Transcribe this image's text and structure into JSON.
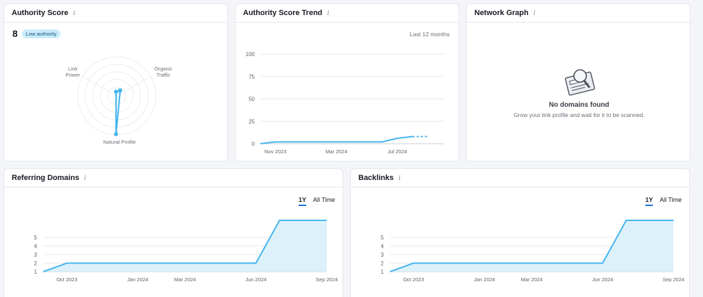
{
  "authority": {
    "title": "Authority Score",
    "score": "8",
    "badge": "Low authority",
    "labels": {
      "link_power": [
        "Link",
        "Power"
      ],
      "organic_traffic": [
        "Organic",
        "Traffic"
      ],
      "natural_profile": "Natural Profile"
    }
  },
  "trend": {
    "title": "Authority Score Trend",
    "period": "Last 12 months"
  },
  "network": {
    "title": "Network Graph",
    "empty_title": "No domains found",
    "empty_text": "Grow your link profile and wait for it to be scanned."
  },
  "referring": {
    "title": "Referring Domains",
    "toggle": [
      "1Y",
      "All Time"
    ]
  },
  "backlinks": {
    "title": "Backlinks",
    "toggle": [
      "1Y",
      "All Time"
    ]
  },
  "colors": {
    "line": "#44b5ee",
    "fill": "#d9f0fb",
    "badge_bg": "#c9ecfb",
    "accent": "#1e6fd9"
  },
  "chart_data": [
    {
      "id": "trend",
      "type": "line",
      "x": [
        "Oct 2023",
        "Nov 2023",
        "Dec 2023",
        "Jan 2024",
        "Feb 2024",
        "Mar 2024",
        "Apr 2024",
        "May 2024",
        "Jun 2024",
        "Jul 2024",
        "Aug 2024",
        "Sep 2024"
      ],
      "values": [
        0,
        2,
        2,
        2,
        2,
        2,
        2,
        2,
        2,
        6,
        8,
        8
      ],
      "projected_from_index": 10,
      "xticks": [
        "Nov 2023",
        "Mar 2024",
        "Jul 2024"
      ],
      "yticks": [
        0,
        25,
        50,
        75,
        100
      ],
      "ylim": [
        0,
        100
      ],
      "grid": true
    },
    {
      "id": "referring",
      "type": "area",
      "x": [
        "Sep 2023",
        "Oct 2023",
        "Nov 2023",
        "Dec 2023",
        "Jan 2024",
        "Feb 2024",
        "Mar 2024",
        "Apr 2024",
        "May 2024",
        "Jun 2024",
        "Jul 2024",
        "Aug 2024",
        "Sep 2024"
      ],
      "values": [
        1,
        2,
        2,
        2,
        2,
        2,
        2,
        2,
        2,
        2,
        7,
        7,
        7
      ],
      "xticks": [
        "Oct 2023",
        "Jan 2024",
        "Mar 2024",
        "Jun 2024",
        "Sep 2024"
      ],
      "yticks": [
        1,
        2,
        3,
        4,
        5
      ],
      "ylim": [
        1,
        7
      ],
      "grid": true
    },
    {
      "id": "backlinks",
      "type": "area",
      "x": [
        "Sep 2023",
        "Oct 2023",
        "Nov 2023",
        "Dec 2023",
        "Jan 2024",
        "Feb 2024",
        "Mar 2024",
        "Apr 2024",
        "May 2024",
        "Jun 2024",
        "Jul 2024",
        "Aug 2024",
        "Sep 2024"
      ],
      "values": [
        1,
        2,
        2,
        2,
        2,
        2,
        2,
        2,
        2,
        2,
        7,
        7,
        7
      ],
      "xticks": [
        "Oct 2023",
        "Jan 2024",
        "Mar 2024",
        "Jun 2024",
        "Sep 2024"
      ],
      "yticks": [
        1,
        2,
        3,
        4,
        5
      ],
      "ylim": [
        1,
        7
      ],
      "grid": true
    }
  ]
}
